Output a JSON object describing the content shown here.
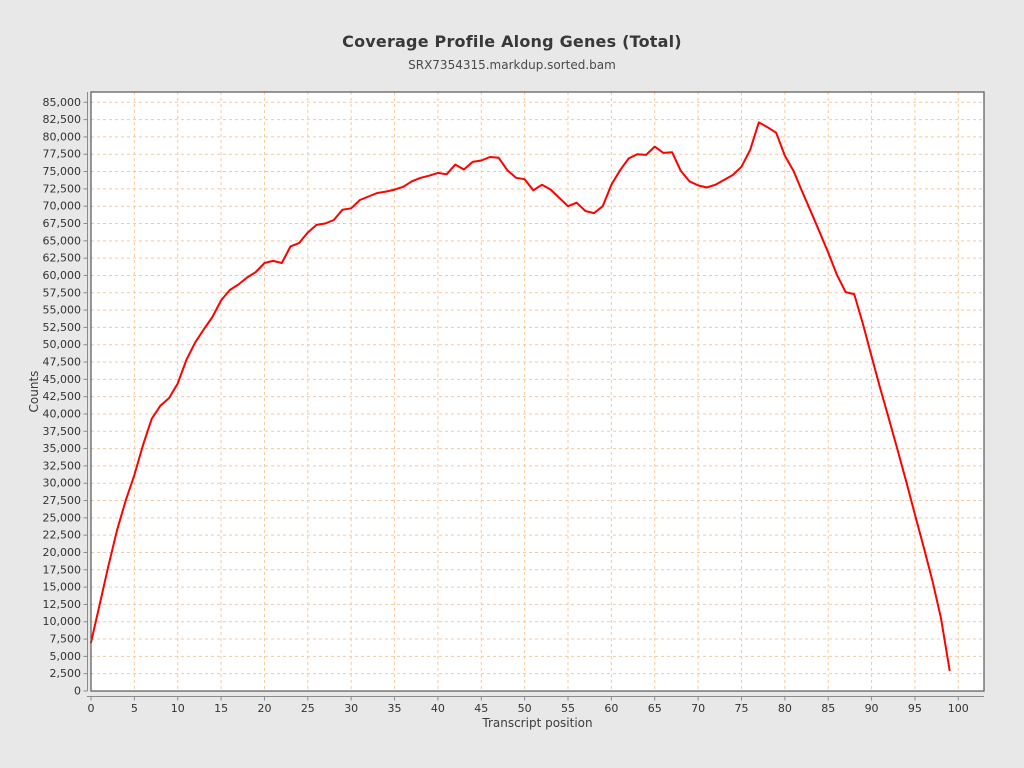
{
  "page": {
    "title": "Coverage Profile Along Genes (Total)",
    "subtitle": "SRX7354315.markdup.sorted.bam"
  },
  "colors": {
    "figure_background": "#e8e8e8",
    "plot_background": "#ffffff",
    "plot_border": "#565656",
    "axis_line": "#8a8a8a",
    "gridline": "#f5c9a0",
    "series_line": "#ff0000",
    "text": "#333333"
  },
  "chart_data": {
    "type": "line",
    "title": "Coverage Profile Along Genes (Total)",
    "subtitle": "SRX7354315.markdup.sorted.bam",
    "xlabel": "Transcript position",
    "ylabel": "Counts",
    "xlim": [
      0,
      103
    ],
    "ylim": [
      0,
      86500
    ],
    "grid": true,
    "grid_style": "dashed",
    "legend_position": "none",
    "x_ticks": [
      0,
      5,
      10,
      15,
      20,
      25,
      30,
      35,
      40,
      45,
      50,
      55,
      60,
      65,
      70,
      75,
      80,
      85,
      90,
      95,
      100
    ],
    "y_ticks": [
      0,
      2500,
      5000,
      7500,
      10000,
      12500,
      15000,
      17500,
      20000,
      22500,
      25000,
      27500,
      30000,
      32500,
      35000,
      37500,
      40000,
      42500,
      45000,
      47500,
      50000,
      52500,
      55000,
      57500,
      60000,
      62500,
      65000,
      67500,
      70000,
      72500,
      75000,
      77500,
      80000,
      82500,
      85000
    ],
    "y_tick_format": "thousands-comma",
    "series": [
      {
        "name": "SRX7354315.markdup.sorted.bam",
        "color": "#ff0000",
        "positions": [
          0,
          1,
          2,
          3,
          4,
          5,
          6,
          7,
          8,
          9,
          10,
          11,
          12,
          13,
          14,
          15,
          16,
          17,
          18,
          19,
          20,
          21,
          22,
          23,
          24,
          25,
          26,
          27,
          28,
          29,
          30,
          31,
          32,
          33,
          34,
          35,
          36,
          37,
          38,
          39,
          40,
          41,
          42,
          43,
          44,
          45,
          46,
          47,
          48,
          49,
          50,
          51,
          52,
          53,
          54,
          55,
          56,
          57,
          58,
          59,
          60,
          61,
          62,
          63,
          64,
          65,
          66,
          67,
          68,
          69,
          70,
          71,
          72,
          73,
          74,
          75,
          76,
          77,
          78,
          79,
          80,
          81,
          82,
          83,
          84,
          85,
          86,
          87,
          88,
          89,
          90,
          91,
          92,
          93,
          94,
          95,
          96,
          97,
          98,
          99
        ],
        "values": [
          7000,
          12500,
          18000,
          23200,
          27500,
          31200,
          35500,
          39300,
          41200,
          42300,
          44400,
          47800,
          50300,
          52200,
          54000,
          56400,
          57900,
          58700,
          59700,
          60500,
          61800,
          62100,
          61800,
          64200,
          64700,
          66200,
          67300,
          67500,
          68000,
          69500,
          69700,
          70900,
          71400,
          71900,
          72100,
          72400,
          72800,
          73600,
          74100,
          74400,
          74800,
          74600,
          76000,
          75300,
          76400,
          76600,
          77100,
          77000,
          75200,
          74100,
          73900,
          72300,
          73100,
          72400,
          71200,
          70000,
          70500,
          69300,
          69000,
          70000,
          73100,
          75200,
          76900,
          77500,
          77400,
          78600,
          77700,
          77800,
          75100,
          73600,
          73000,
          72700,
          73100,
          73800,
          74500,
          75700,
          78100,
          82100,
          81400,
          80600,
          77300,
          75100,
          72100,
          69200,
          66300,
          63300,
          60100,
          57600,
          57300,
          53000,
          48300,
          43700,
          39300,
          34800,
          30200,
          25500,
          20800,
          16000,
          10500,
          3000
        ]
      }
    ]
  }
}
